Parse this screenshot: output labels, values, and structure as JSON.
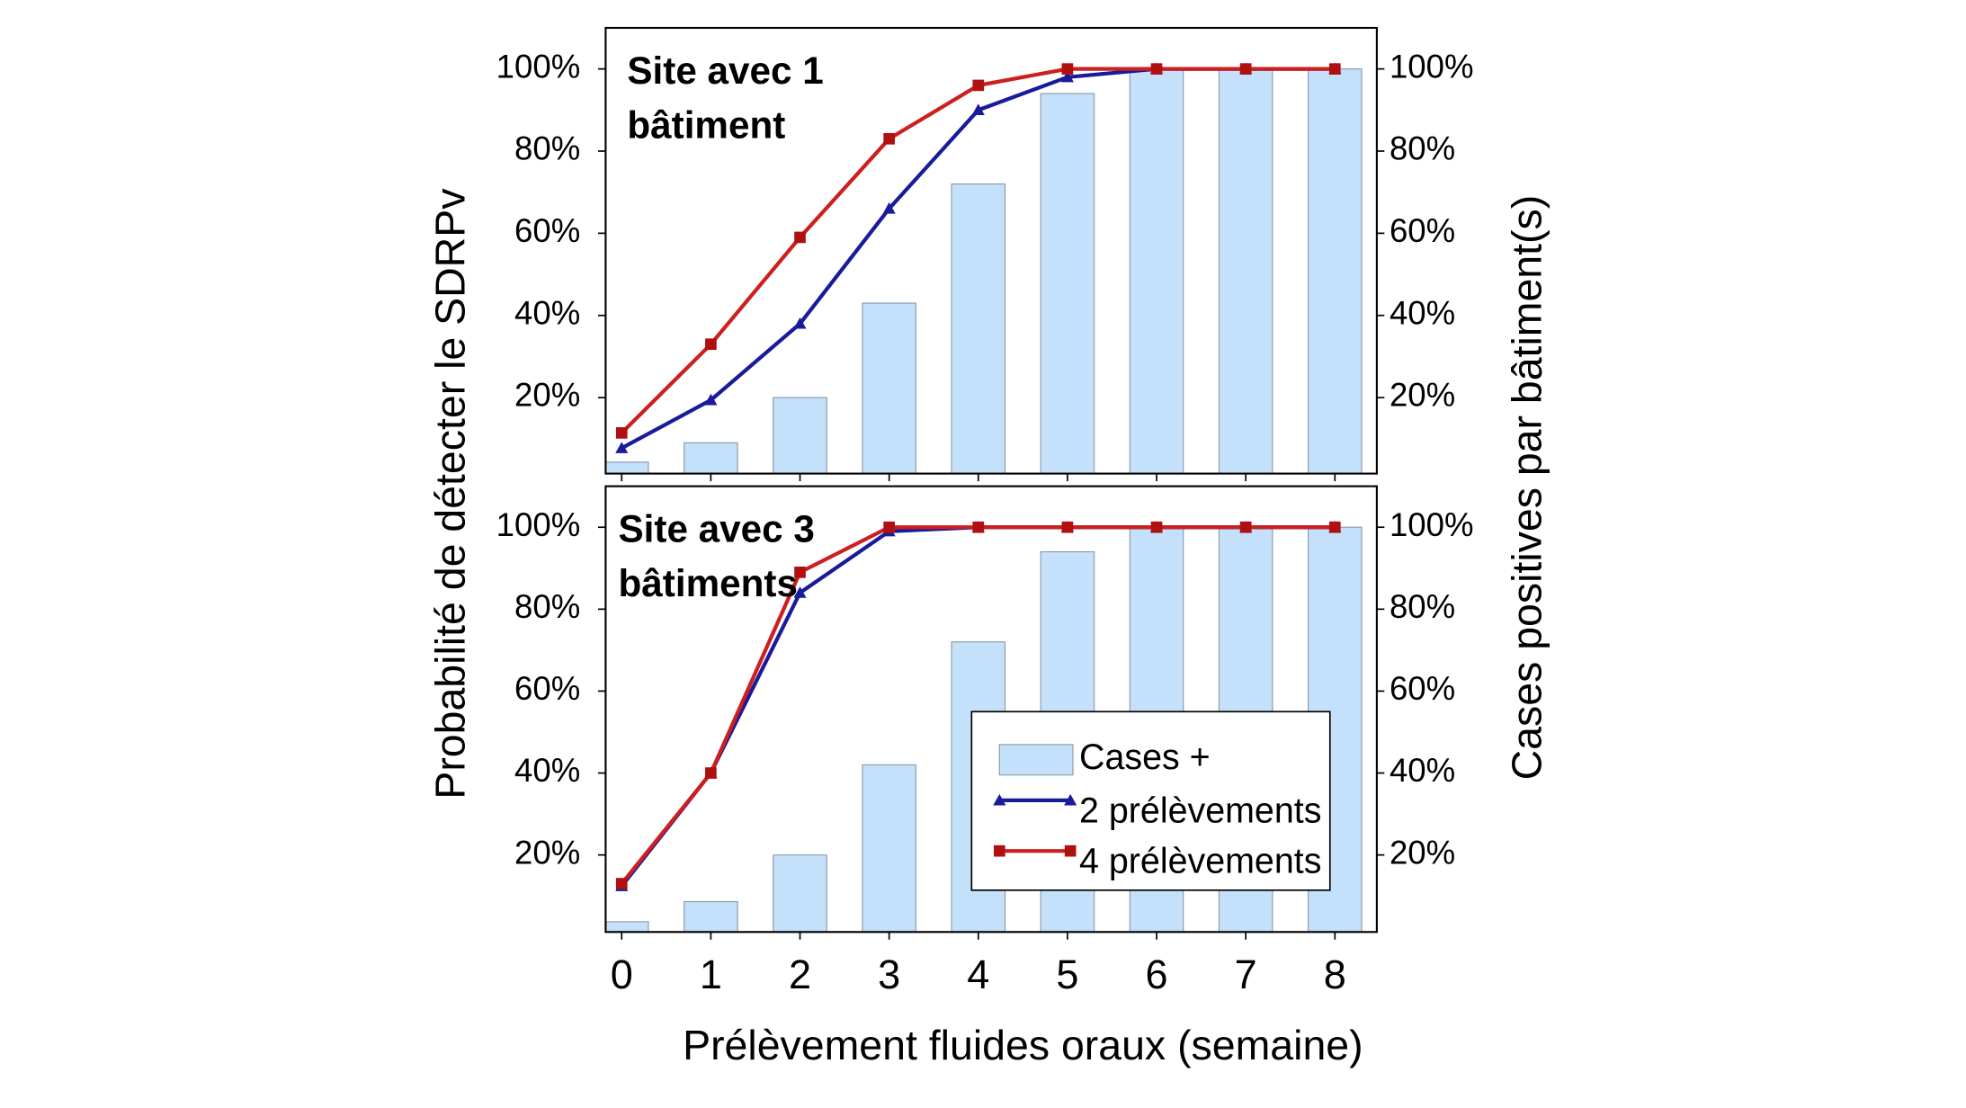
{
  "chart_data": [
    {
      "type": "bar-line",
      "title": [
        "Site avec 1",
        "bâtiment"
      ],
      "ylabel": "Probabilité de détecter le SDRPv",
      "y2label": "Cases positives par bâtiment(s)",
      "x": [
        0,
        1,
        2,
        3,
        4,
        5,
        6,
        7,
        8
      ],
      "xlim": [
        -0.18,
        8.47
      ],
      "xticks": [
        0,
        1,
        2,
        3,
        4,
        5,
        6,
        7,
        8
      ],
      "show_xticklabels": false,
      "ylim": [
        1.5,
        110
      ],
      "yticks": [
        {
          "value": 20,
          "label": "20%"
        },
        {
          "value": 40,
          "label": "40%"
        },
        {
          "value": 60,
          "label": "60%"
        },
        {
          "value": 80,
          "label": "80%"
        },
        {
          "value": 100,
          "label": "100%"
        }
      ],
      "y2lim": [
        1.5,
        110
      ],
      "y2ticks": [
        {
          "value": 20,
          "label": "20%"
        },
        {
          "value": 40,
          "label": "40%"
        },
        {
          "value": 60,
          "label": "60%"
        },
        {
          "value": 80,
          "label": "80%"
        },
        {
          "value": 100,
          "label": "100%"
        }
      ],
      "series": [
        {
          "name": "Cases +",
          "kind": "bar",
          "axis": "y2",
          "color": "#c5e0fa",
          "values": [
            4.3,
            9,
            20,
            43,
            72,
            94,
            100,
            100,
            100
          ]
        },
        {
          "name": "2 prélèvements",
          "kind": "line",
          "marker": "triangle",
          "color": "#1a1a9c",
          "values": [
            7.7,
            19.4,
            38,
            66,
            90,
            98,
            100,
            100,
            100
          ]
        },
        {
          "name": "4 prélèvements",
          "kind": "line",
          "marker": "square",
          "color": "#cc1f1f",
          "values": [
            11.4,
            33,
            59,
            83,
            96,
            100,
            100,
            100,
            100
          ]
        }
      ]
    },
    {
      "type": "bar-line",
      "title": [
        "Site avec 3",
        "bâtiments"
      ],
      "xlabel": "Prélèvement fluides oraux (semaine)",
      "x": [
        0,
        1,
        2,
        3,
        4,
        5,
        6,
        7,
        8
      ],
      "xlim": [
        -0.18,
        8.47
      ],
      "xticks": [
        0,
        1,
        2,
        3,
        4,
        5,
        6,
        7,
        8
      ],
      "show_xticklabels": true,
      "ylim": [
        1.2,
        110
      ],
      "yticks": [
        {
          "value": 20,
          "label": "20%"
        },
        {
          "value": 40,
          "label": "40%"
        },
        {
          "value": 60,
          "label": "60%"
        },
        {
          "value": 80,
          "label": "80%"
        },
        {
          "value": 100,
          "label": "100%"
        }
      ],
      "y2lim": [
        1.2,
        110
      ],
      "y2ticks": [
        {
          "value": 20,
          "label": "20%"
        },
        {
          "value": 40,
          "label": "40%"
        },
        {
          "value": 60,
          "label": "60%"
        },
        {
          "value": 80,
          "label": "80%"
        },
        {
          "value": 100,
          "label": "100%"
        }
      ],
      "legend": "lower right",
      "series": [
        {
          "name": "Cases +",
          "kind": "bar",
          "axis": "y2",
          "color": "#c5e0fa",
          "values": [
            3.7,
            8.6,
            20,
            42,
            72,
            94,
            100,
            100,
            100
          ]
        },
        {
          "name": "2 prélèvements",
          "kind": "line",
          "marker": "triangle",
          "color": "#1a1a9c",
          "values": [
            12.4,
            40,
            84,
            99,
            100,
            100,
            100,
            100,
            100
          ]
        },
        {
          "name": "4 prélèvements",
          "kind": "line",
          "marker": "square",
          "color": "#cc1f1f",
          "values": [
            13,
            40,
            89,
            100,
            100,
            100,
            100,
            100,
            100
          ]
        }
      ]
    }
  ]
}
